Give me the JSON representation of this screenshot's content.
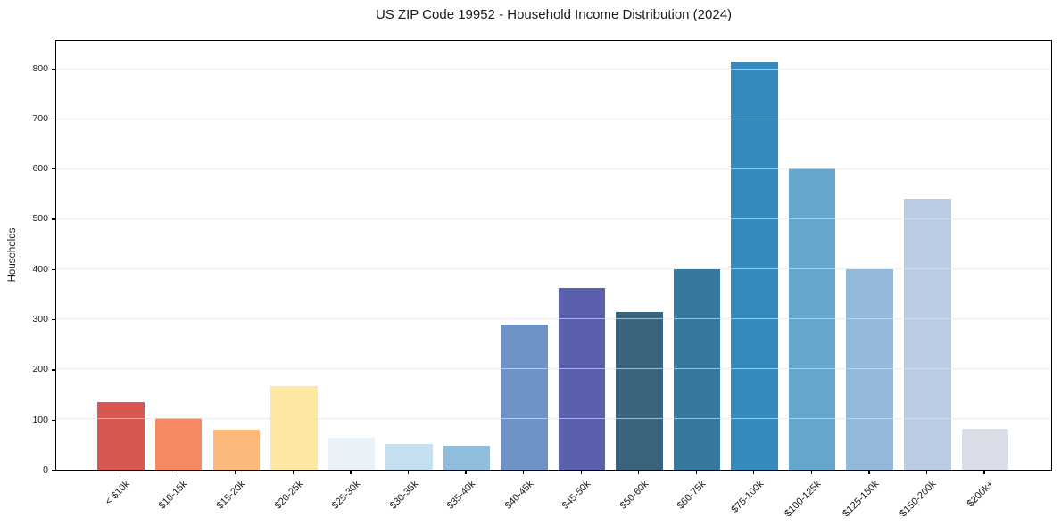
{
  "chart_data": {
    "type": "bar",
    "title": "US ZIP Code 19952 - Household Income Distribution (2024)",
    "xlabel": "",
    "ylabel": "Households",
    "categories": [
      "< $10k",
      "$10-15k",
      "$15-20k",
      "$20-25k",
      "$25-30k",
      "$30-35k",
      "$35-40k",
      "$40-45k",
      "$45-50k",
      "$50-60k",
      "$60-75k",
      "$75-100k",
      "$100-125k",
      "$125-150k",
      "$150-200k",
      "$200k+"
    ],
    "values": [
      134,
      102,
      80,
      167,
      63,
      50,
      48,
      289,
      363,
      315,
      400,
      816,
      602,
      400,
      541,
      81
    ],
    "bar_colors": [
      "#d65850",
      "#f58a62",
      "#fcba7a",
      "#fde8a2",
      "#e9f2f9",
      "#c5e0ef",
      "#90bddd",
      "#6d94c5",
      "#5a5fae",
      "#3a647d",
      "#35799e",
      "#368abf",
      "#64a6cc",
      "#92b8da",
      "#b9cce3",
      "#dbdde9"
    ],
    "ylim": [
      0,
      857
    ],
    "yticks": [
      0,
      100,
      200,
      300,
      400,
      500,
      600,
      700,
      800
    ],
    "grid": "horizontal",
    "legend": "none",
    "background": "#ffffff",
    "frame_color": "#000000"
  }
}
